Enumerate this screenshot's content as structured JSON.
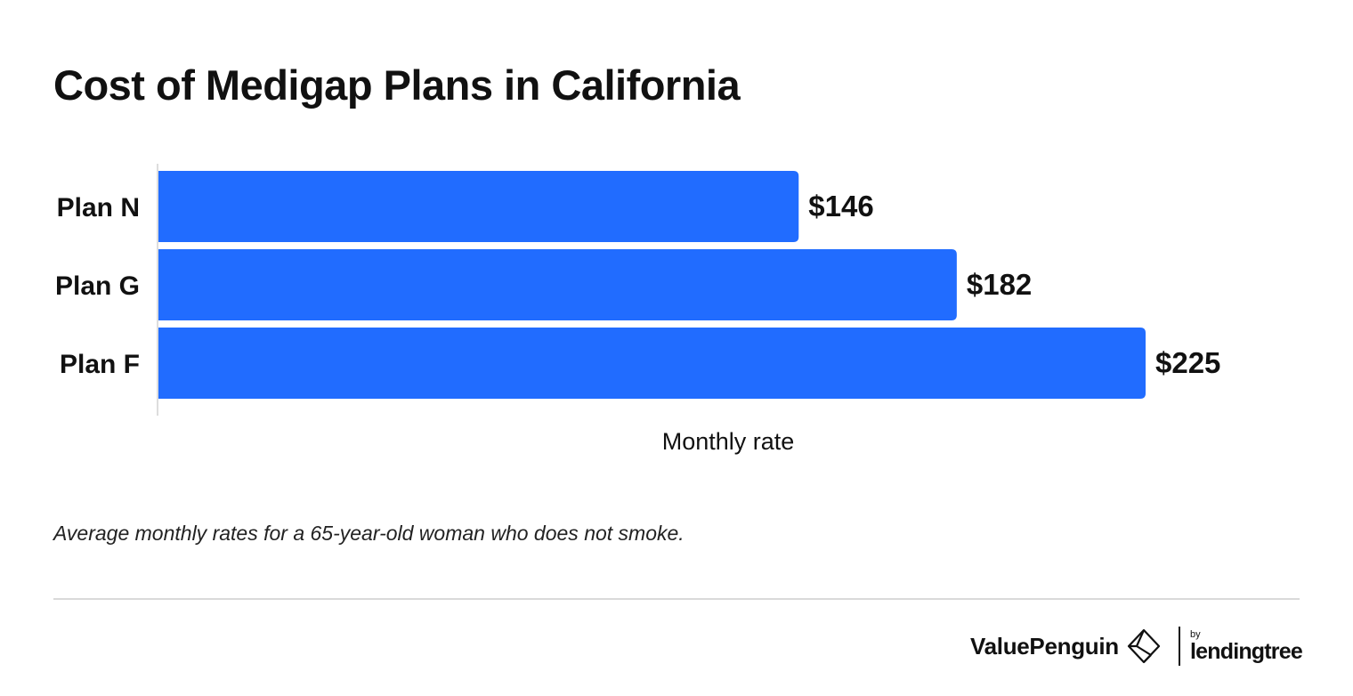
{
  "title": "Cost of Medigap Plans in California",
  "note": "Average monthly rates for a 65-year-old woman who does not smoke.",
  "brand": {
    "valuepenguin": "ValuePenguin",
    "by": "by",
    "lendingtree": "lendingtree"
  },
  "colors": {
    "bar": "#216cff",
    "text": "#111111",
    "axis": "#dddddd"
  },
  "chart_data": {
    "type": "bar",
    "orientation": "horizontal",
    "categories": [
      "Plan N",
      "Plan G",
      "Plan F"
    ],
    "values": [
      146,
      182,
      225
    ],
    "data_labels": [
      "$146",
      "$182",
      "$225"
    ],
    "xlabel": "Monthly rate",
    "ylabel": "",
    "xlim": [
      0,
      225
    ],
    "grid": false
  }
}
